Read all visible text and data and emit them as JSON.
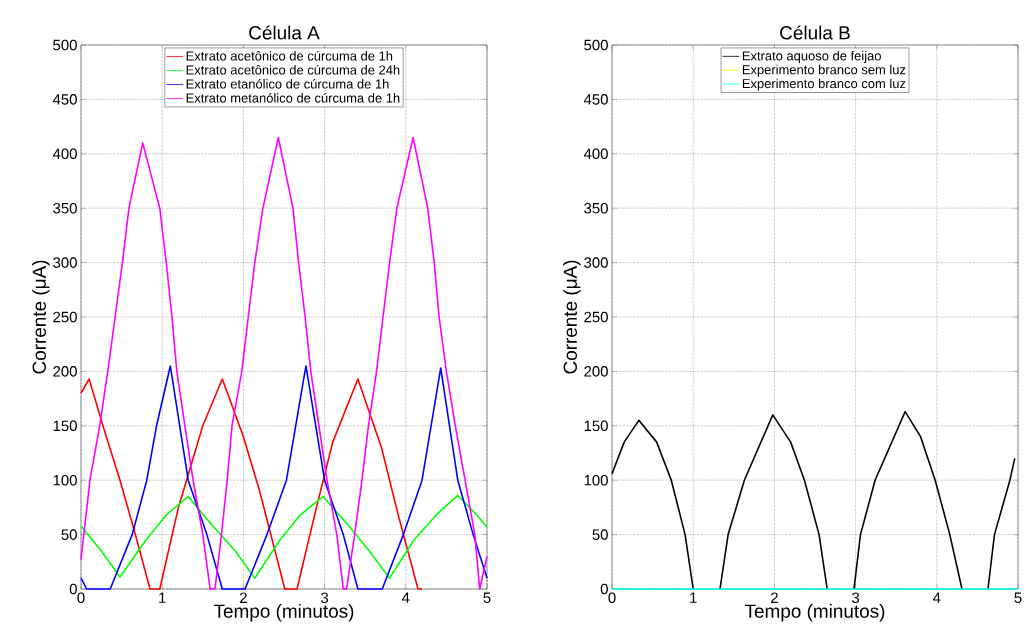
{
  "chart_data": [
    {
      "type": "line",
      "title": "Célula A",
      "xlabel": "Tempo (minutos)",
      "ylabel": "Corrente (μA)",
      "xlim": [
        0,
        5
      ],
      "ylim": [
        0,
        500
      ],
      "xticks": [
        0,
        1,
        2,
        3,
        4,
        5
      ],
      "yticks": [
        0,
        50,
        100,
        150,
        200,
        250,
        300,
        350,
        400,
        450,
        500
      ],
      "grid": true,
      "legend": "top",
      "marker": "none",
      "line_style": "solid",
      "series": [
        {
          "name": "Extrato acetônico de cúrcuma de 1h",
          "color": "#ff0000",
          "x": [
            0,
            0.1,
            0.27,
            0.48,
            0.67,
            0.85,
            0.97,
            1.2,
            1.5,
            1.74,
            2.0,
            2.2,
            2.51,
            2.66,
            2.9,
            3.1,
            3.41,
            3.7,
            3.9,
            4.15,
            4.2
          ],
          "values": [
            180,
            193,
            150,
            100,
            50,
            0,
            0,
            75,
            150,
            193,
            140,
            90,
            0,
            0,
            75,
            135,
            193,
            130,
            70,
            0,
            0
          ]
        },
        {
          "name": "Extrato acetônico de cúrcuma de 24h",
          "color": "#00ff00",
          "x": [
            0,
            0.25,
            0.48,
            0.8,
            1.05,
            1.32,
            1.6,
            1.9,
            2.14,
            2.45,
            2.7,
            2.98,
            3.3,
            3.55,
            3.8,
            4.1,
            4.4,
            4.64,
            4.85,
            5
          ],
          "values": [
            58,
            35,
            11,
            45,
            68,
            85,
            60,
            35,
            10,
            45,
            68,
            85,
            58,
            35,
            10,
            45,
            70,
            86,
            70,
            57
          ]
        },
        {
          "name": "Extrato etanólico de cúrcuma de 1h",
          "color": "#0000ff",
          "x": [
            0,
            0.07,
            0.36,
            0.63,
            0.81,
            0.93,
            1.1,
            1.32,
            1.55,
            1.74,
            2.02,
            2.29,
            2.53,
            2.77,
            3.0,
            3.23,
            3.41,
            3.71,
            3.97,
            4.2,
            4.43,
            4.64,
            4.83,
            5
          ],
          "values": [
            10,
            0,
            0,
            50,
            100,
            150,
            205,
            100,
            50,
            0,
            0,
            50,
            100,
            205,
            100,
            50,
            0,
            0,
            50,
            100,
            203,
            100,
            50,
            10
          ]
        },
        {
          "name": "Extrato metanólico de cúrcuma de 1h",
          "color": "#ff00ff",
          "x": [
            0,
            0.11,
            0.23,
            0.33,
            0.42,
            0.51,
            0.59,
            0.76,
            0.97,
            1.05,
            1.12,
            1.18,
            1.28,
            1.38,
            1.5,
            1.59,
            1.65,
            1.73,
            1.8,
            1.86,
            1.98,
            2.06,
            2.14,
            2.24,
            2.43,
            2.61,
            2.68,
            2.76,
            2.83,
            3.03,
            3.15,
            3.23,
            3.27,
            3.37,
            3.46,
            3.54,
            3.64,
            3.72,
            3.8,
            3.89,
            4.09,
            4.27,
            4.35,
            4.41,
            4.5,
            4.61,
            4.73,
            4.85,
            4.91,
            5
          ],
          "values": [
            27,
            100,
            150,
            200,
            250,
            300,
            350,
            410,
            350,
            300,
            250,
            200,
            150,
            100,
            50,
            0,
            0,
            50,
            100,
            150,
            200,
            250,
            300,
            350,
            415,
            350,
            300,
            250,
            200,
            100,
            50,
            0,
            0,
            50,
            100,
            150,
            200,
            250,
            300,
            350,
            415,
            350,
            300,
            250,
            200,
            150,
            100,
            50,
            0,
            30
          ]
        }
      ]
    },
    {
      "type": "line",
      "title": "Célula B",
      "xlabel": "Tempo (minutos)",
      "ylabel": "Corrente (μA)",
      "xlim": [
        0,
        5
      ],
      "ylim": [
        0,
        500
      ],
      "xticks": [
        0,
        1,
        2,
        3,
        4,
        5
      ],
      "yticks": [
        0,
        50,
        100,
        150,
        200,
        250,
        300,
        350,
        400,
        450,
        500
      ],
      "grid": true,
      "legend": "top",
      "marker": "none",
      "line_style": "solid",
      "series": [
        {
          "name": "Extrato aquoso de feijao",
          "color": "#000000",
          "x": [
            0,
            0.15,
            0.33,
            0.55,
            0.73,
            0.9,
            1.0,
            1.15,
            1.33,
            1.43,
            1.63,
            1.98,
            2.2,
            2.37,
            2.55,
            2.65,
            2.8,
            2.98,
            3.06,
            3.24,
            3.61,
            3.8,
            3.98,
            4.16,
            4.31,
            4.5,
            4.63,
            4.71,
            4.9,
            4.96
          ],
          "values": [
            106,
            135,
            155,
            135,
            100,
            50,
            0,
            null,
            0,
            50,
            100,
            160,
            135,
            100,
            50,
            0,
            null,
            0,
            50,
            100,
            163,
            140,
            100,
            50,
            0,
            null,
            0,
            50,
            100,
            120
          ]
        },
        {
          "name": "Experimento branco sem luz",
          "color": "#ffff00"
        },
        {
          "name": "Experimento branco com luz",
          "color": "#00ffff",
          "x": [
            0,
            5
          ],
          "values": [
            0,
            0
          ]
        }
      ]
    }
  ]
}
